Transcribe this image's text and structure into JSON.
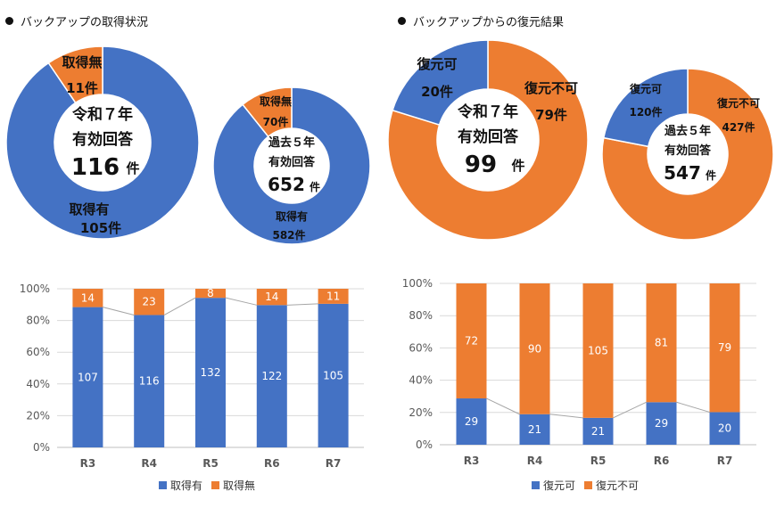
{
  "colors": {
    "blue": "#4472C4",
    "orange": "#ED7D31",
    "grid": "#d9d9d9",
    "axis": "#595959"
  },
  "sections": {
    "left_title": "バックアップの取得状況",
    "right_title": "バックアップからの復元結果"
  },
  "chart_data": [
    {
      "type": "pie",
      "variant": "donut",
      "center_text": [
        "令和７年",
        "有効回答",
        "116",
        "件"
      ],
      "slices": [
        {
          "name": "取得有",
          "value": 105,
          "label_value": "105件",
          "color": "#4472C4"
        },
        {
          "name": "取得無",
          "value": 11,
          "label_value": "11件",
          "color": "#ED7D31"
        }
      ]
    },
    {
      "type": "pie",
      "variant": "donut",
      "center_text": [
        "過去５年",
        "有効回答",
        "652",
        "件"
      ],
      "slices": [
        {
          "name": "取得有",
          "value": 582,
          "label_value": "582件",
          "color": "#4472C4"
        },
        {
          "name": "取得無",
          "value": 70,
          "label_value": "70件",
          "color": "#ED7D31"
        }
      ]
    },
    {
      "type": "pie",
      "variant": "donut",
      "center_text": [
        "令和７年",
        "有効回答",
        "99",
        "件"
      ],
      "slices": [
        {
          "name": "復元可",
          "value": 20,
          "label_value": "20件",
          "color": "#4472C4"
        },
        {
          "name": "復元不可",
          "value": 79,
          "label_value": "79件",
          "color": "#ED7D31"
        }
      ]
    },
    {
      "type": "pie",
      "variant": "donut",
      "center_text": [
        "過去５年",
        "有効回答",
        "547",
        "件"
      ],
      "slices": [
        {
          "name": "復元可",
          "value": 120,
          "label_value": "120件",
          "color": "#4472C4"
        },
        {
          "name": "復元不可",
          "value": 427,
          "label_value": "427件",
          "color": "#ED7D31"
        }
      ]
    },
    {
      "type": "bar",
      "stacked": "percent",
      "categories": [
        "R3",
        "R4",
        "R5",
        "R6",
        "R7"
      ],
      "y_ticks": [
        "0%",
        "20%",
        "40%",
        "60%",
        "80%",
        "100%"
      ],
      "ylim": [
        0,
        100
      ],
      "series": [
        {
          "name": "取得有",
          "color": "#4472C4",
          "values": [
            107,
            116,
            132,
            122,
            105
          ]
        },
        {
          "name": "取得無",
          "color": "#ED7D31",
          "values": [
            14,
            23,
            8,
            14,
            11
          ]
        }
      ],
      "legend": "bottom"
    },
    {
      "type": "bar",
      "stacked": "percent",
      "categories": [
        "R3",
        "R4",
        "R5",
        "R6",
        "R7"
      ],
      "y_ticks": [
        "0%",
        "20%",
        "40%",
        "60%",
        "80%",
        "100%"
      ],
      "ylim": [
        0,
        100
      ],
      "series": [
        {
          "name": "復元可",
          "color": "#4472C4",
          "values": [
            29,
            21,
            21,
            29,
            20
          ]
        },
        {
          "name": "復元不可",
          "color": "#ED7D31",
          "values": [
            72,
            90,
            105,
            81,
            79
          ]
        }
      ],
      "legend": "bottom"
    }
  ]
}
